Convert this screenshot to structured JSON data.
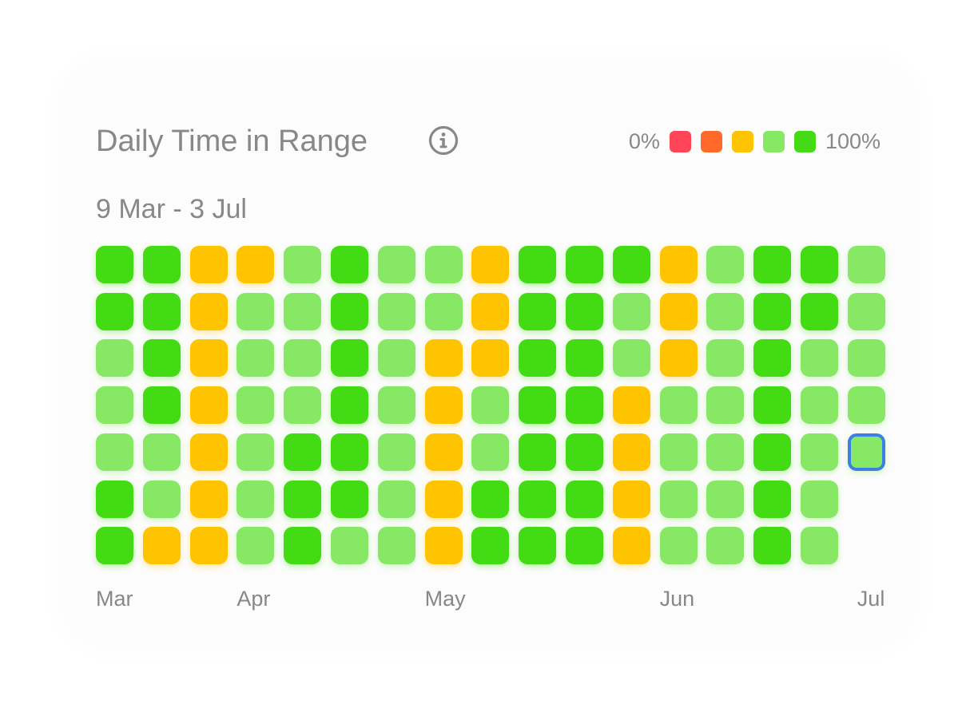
{
  "header": {
    "title": "Daily Time in Range",
    "subtitle": "9 Mar - 3 Jul",
    "info_icon": "info-circle-icon"
  },
  "legend": {
    "low_label": "0%",
    "high_label": "100%",
    "colors": [
      "#ff4557",
      "#ff6a2b",
      "#ffc400",
      "#86e864",
      "#42db14"
    ]
  },
  "colors": {
    "levels": {
      "1": "#ffc400",
      "2": "#86e864",
      "3": "#42db14"
    },
    "selected_outline": "#3d80e3",
    "text": "#888888"
  },
  "chart_data": {
    "type": "heatmap",
    "title": "Daily Time in Range",
    "date_range": "9 Mar - 3 Jul",
    "scale": {
      "min_label": "0%",
      "max_label": "100%",
      "levels": 5
    },
    "x_tick_labels": [
      {
        "label": "Mar",
        "week": 0
      },
      {
        "label": "Apr",
        "week": 3
      },
      {
        "label": "May",
        "week": 7
      },
      {
        "label": "Jun",
        "week": 12
      },
      {
        "label": "Jul",
        "week": 16
      }
    ],
    "weeks": [
      [
        3,
        3,
        2,
        2,
        2,
        3,
        3
      ],
      [
        3,
        3,
        3,
        3,
        2,
        2,
        1
      ],
      [
        1,
        1,
        1,
        1,
        1,
        1,
        1
      ],
      [
        1,
        2,
        2,
        2,
        2,
        2,
        2
      ],
      [
        2,
        2,
        2,
        2,
        3,
        3,
        3
      ],
      [
        3,
        3,
        3,
        3,
        3,
        3,
        2
      ],
      [
        2,
        2,
        2,
        2,
        2,
        2,
        2
      ],
      [
        2,
        2,
        1,
        1,
        1,
        1,
        1
      ],
      [
        1,
        1,
        1,
        2,
        2,
        3,
        3
      ],
      [
        3,
        3,
        3,
        3,
        3,
        3,
        3
      ],
      [
        3,
        3,
        3,
        3,
        3,
        3,
        3
      ],
      [
        3,
        2,
        2,
        1,
        1,
        1,
        1
      ],
      [
        1,
        1,
        1,
        2,
        2,
        2,
        2
      ],
      [
        2,
        2,
        2,
        2,
        2,
        2,
        2
      ],
      [
        3,
        3,
        3,
        3,
        3,
        3,
        3
      ],
      [
        3,
        3,
        2,
        2,
        2,
        2,
        2
      ],
      [
        2,
        2,
        2,
        2,
        2
      ]
    ],
    "selected": {
      "week": 16,
      "day": 4
    }
  }
}
